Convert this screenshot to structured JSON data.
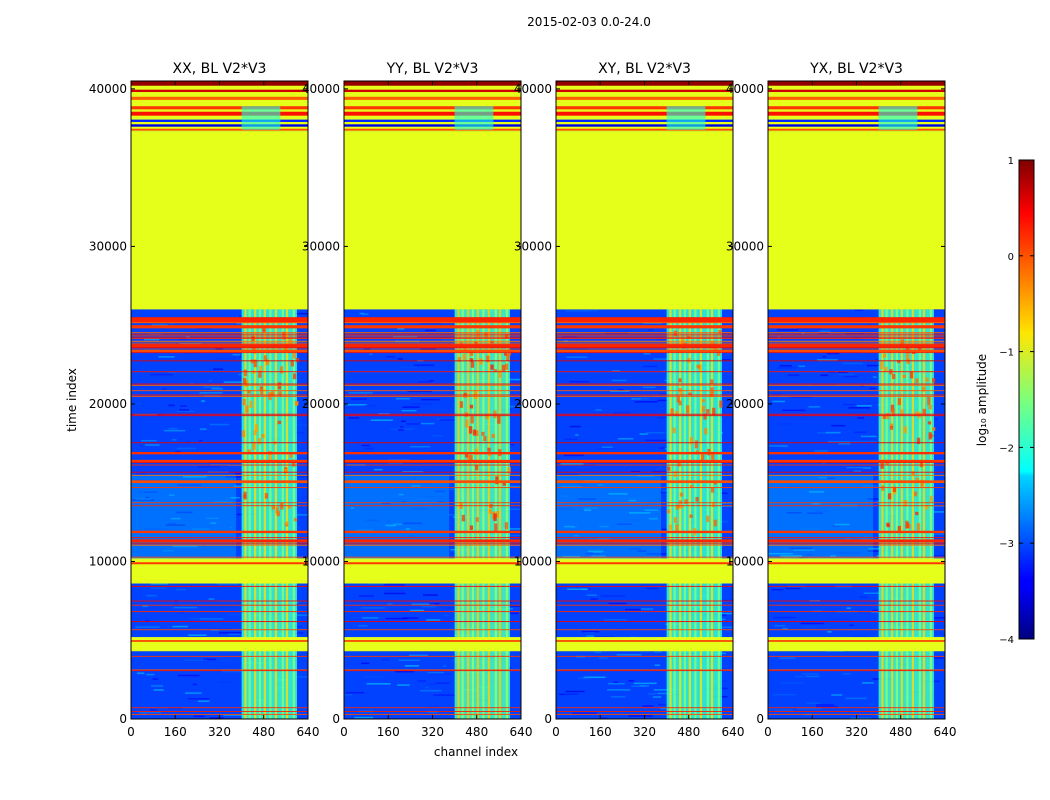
{
  "chart_data": {
    "type": "heatmap",
    "suptitle": "2015-02-03 0.0-24.0",
    "xlabel": "channel index",
    "ylabel": "time index",
    "xlim": [
      0,
      640
    ],
    "ylim": [
      0,
      40500
    ],
    "xticks": [
      0,
      160,
      320,
      480,
      640
    ],
    "yticks": [
      0,
      10000,
      20000,
      30000,
      40000
    ],
    "panels": [
      {
        "title": "XX, BL V2*V3",
        "band_level": 1.15
      },
      {
        "title": "YY, BL V2*V3",
        "band_level": 1.45
      },
      {
        "title": "XY, BL V2*V3",
        "band_level": 1.05
      },
      {
        "title": "YX, BL V2*V3",
        "band_level": 1.25
      }
    ],
    "rfi_channel_band": [
      400,
      600
    ],
    "flagged_time_ranges": [
      [
        26000,
        37300
      ],
      [
        8600,
        10200
      ],
      [
        4300,
        5200
      ],
      [
        37300,
        40500
      ]
    ],
    "colorbar": {
      "label": "log₁₀ amplitude",
      "range": [
        -4,
        1
      ],
      "ticks": [
        1,
        0,
        -1,
        -2,
        -3,
        -4
      ],
      "tick_labels": [
        "1",
        "0",
        "−1",
        "−2",
        "−3",
        "−4"
      ],
      "colormap": "jet"
    }
  }
}
